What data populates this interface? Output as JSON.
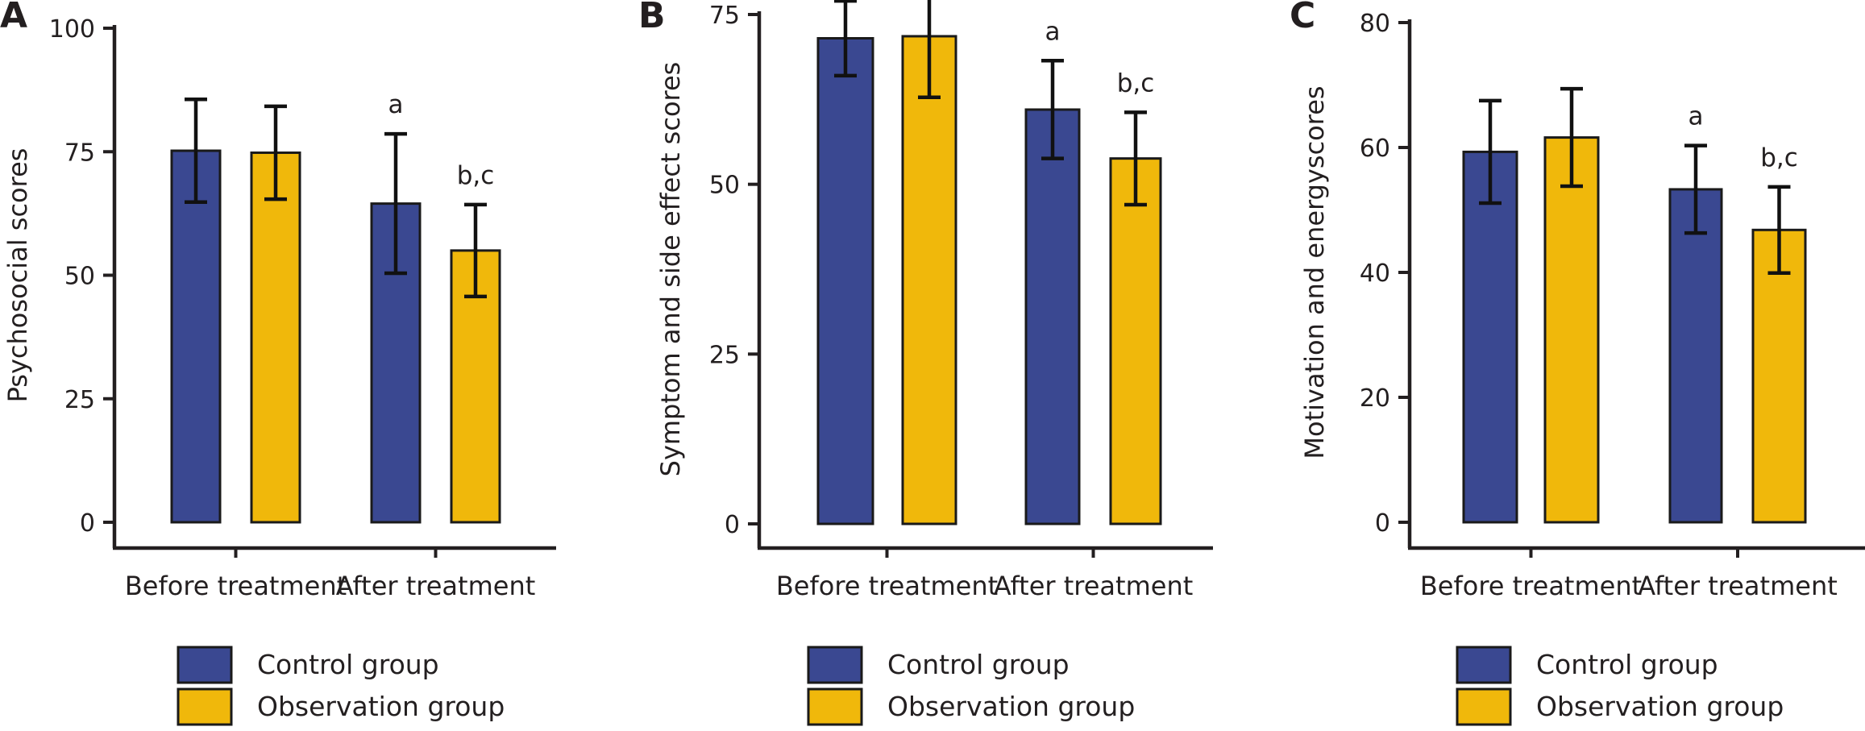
{
  "colors": {
    "control": "#3a4891",
    "observation": "#f0b80b",
    "axis": "#231f20"
  },
  "legend": [
    {
      "label": "Control group",
      "color": "#3a4891"
    },
    {
      "label": "Observation group",
      "color": "#f0b80b"
    }
  ],
  "chart_data": [
    {
      "type": "bar",
      "panel": "A",
      "ylabel": "Psychosocial scores",
      "ylim": [
        0,
        100
      ],
      "yticks": [
        0,
        25,
        50,
        75,
        100
      ],
      "categories": [
        "Before treatment",
        "After treatment"
      ],
      "series": [
        {
          "name": "Control group",
          "values": [
            75.2,
            64.5
          ],
          "errors": [
            10.4,
            14.1
          ]
        },
        {
          "name": "Observation group",
          "values": [
            74.8,
            55.0
          ],
          "errors": [
            9.4,
            9.3
          ]
        }
      ],
      "annotations": [
        [
          "",
          "a"
        ],
        [
          "",
          "b,c"
        ]
      ]
    },
    {
      "type": "bar",
      "panel": "B",
      "ylabel": "Symptom and side effect scores",
      "ylim": [
        0,
        75
      ],
      "yticks": [
        0,
        25,
        50,
        75
      ],
      "categories": [
        "Before treatment",
        "After treatment"
      ],
      "series": [
        {
          "name": "Control group",
          "values": [
            71.5,
            61.0
          ],
          "errors": [
            5.5,
            7.2
          ]
        },
        {
          "name": "Observation group",
          "values": [
            71.8,
            53.8
          ],
          "errors": [
            9.0,
            6.8
          ]
        }
      ],
      "annotations": [
        [
          "",
          "a"
        ],
        [
          "",
          "b,c"
        ]
      ]
    },
    {
      "type": "bar",
      "panel": "C",
      "ylabel": "Motivation and energyscores",
      "ylim": [
        0,
        80
      ],
      "yticks": [
        0,
        20,
        40,
        60,
        80
      ],
      "categories": [
        "Before treatment",
        "After treatment"
      ],
      "series": [
        {
          "name": "Control group",
          "values": [
            59.3,
            53.3
          ],
          "errors": [
            8.2,
            7.0
          ]
        },
        {
          "name": "Observation group",
          "values": [
            61.6,
            46.8
          ],
          "errors": [
            7.8,
            6.9
          ]
        }
      ],
      "annotations": [
        [
          "",
          "a"
        ],
        [
          "",
          "b,c"
        ]
      ]
    }
  ]
}
